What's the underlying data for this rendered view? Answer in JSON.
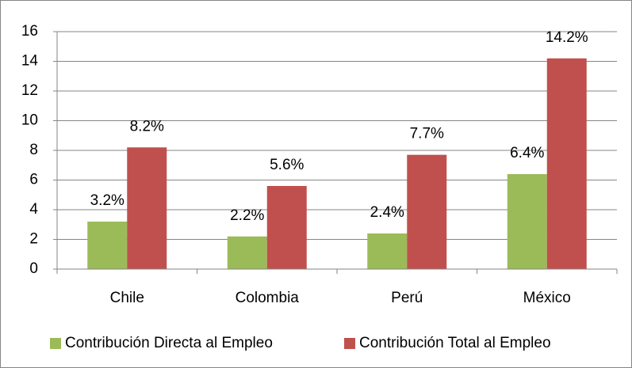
{
  "chart_data": {
    "type": "bar",
    "categories": [
      "Chile",
      "Colombia",
      "Perú",
      "México"
    ],
    "series": [
      {
        "name": "Contribución Directa al Empleo",
        "color": "#9bbb59",
        "values": [
          3.2,
          2.2,
          2.4,
          6.4
        ],
        "value_labels": [
          "3.2%",
          "2.2%",
          "2.4%",
          "6.4%"
        ]
      },
      {
        "name": "Contribución Total al Empleo",
        "color": "#c0504d",
        "values": [
          8.2,
          5.6,
          7.7,
          14.2
        ],
        "value_labels": [
          "8.2%",
          "5.6%",
          "7.7%",
          "14.2%"
        ]
      }
    ],
    "ylim": [
      0,
      16
    ],
    "yticks": [
      0,
      2,
      4,
      6,
      8,
      10,
      12,
      14,
      16
    ],
    "grid": true,
    "legend": "bottom"
  }
}
